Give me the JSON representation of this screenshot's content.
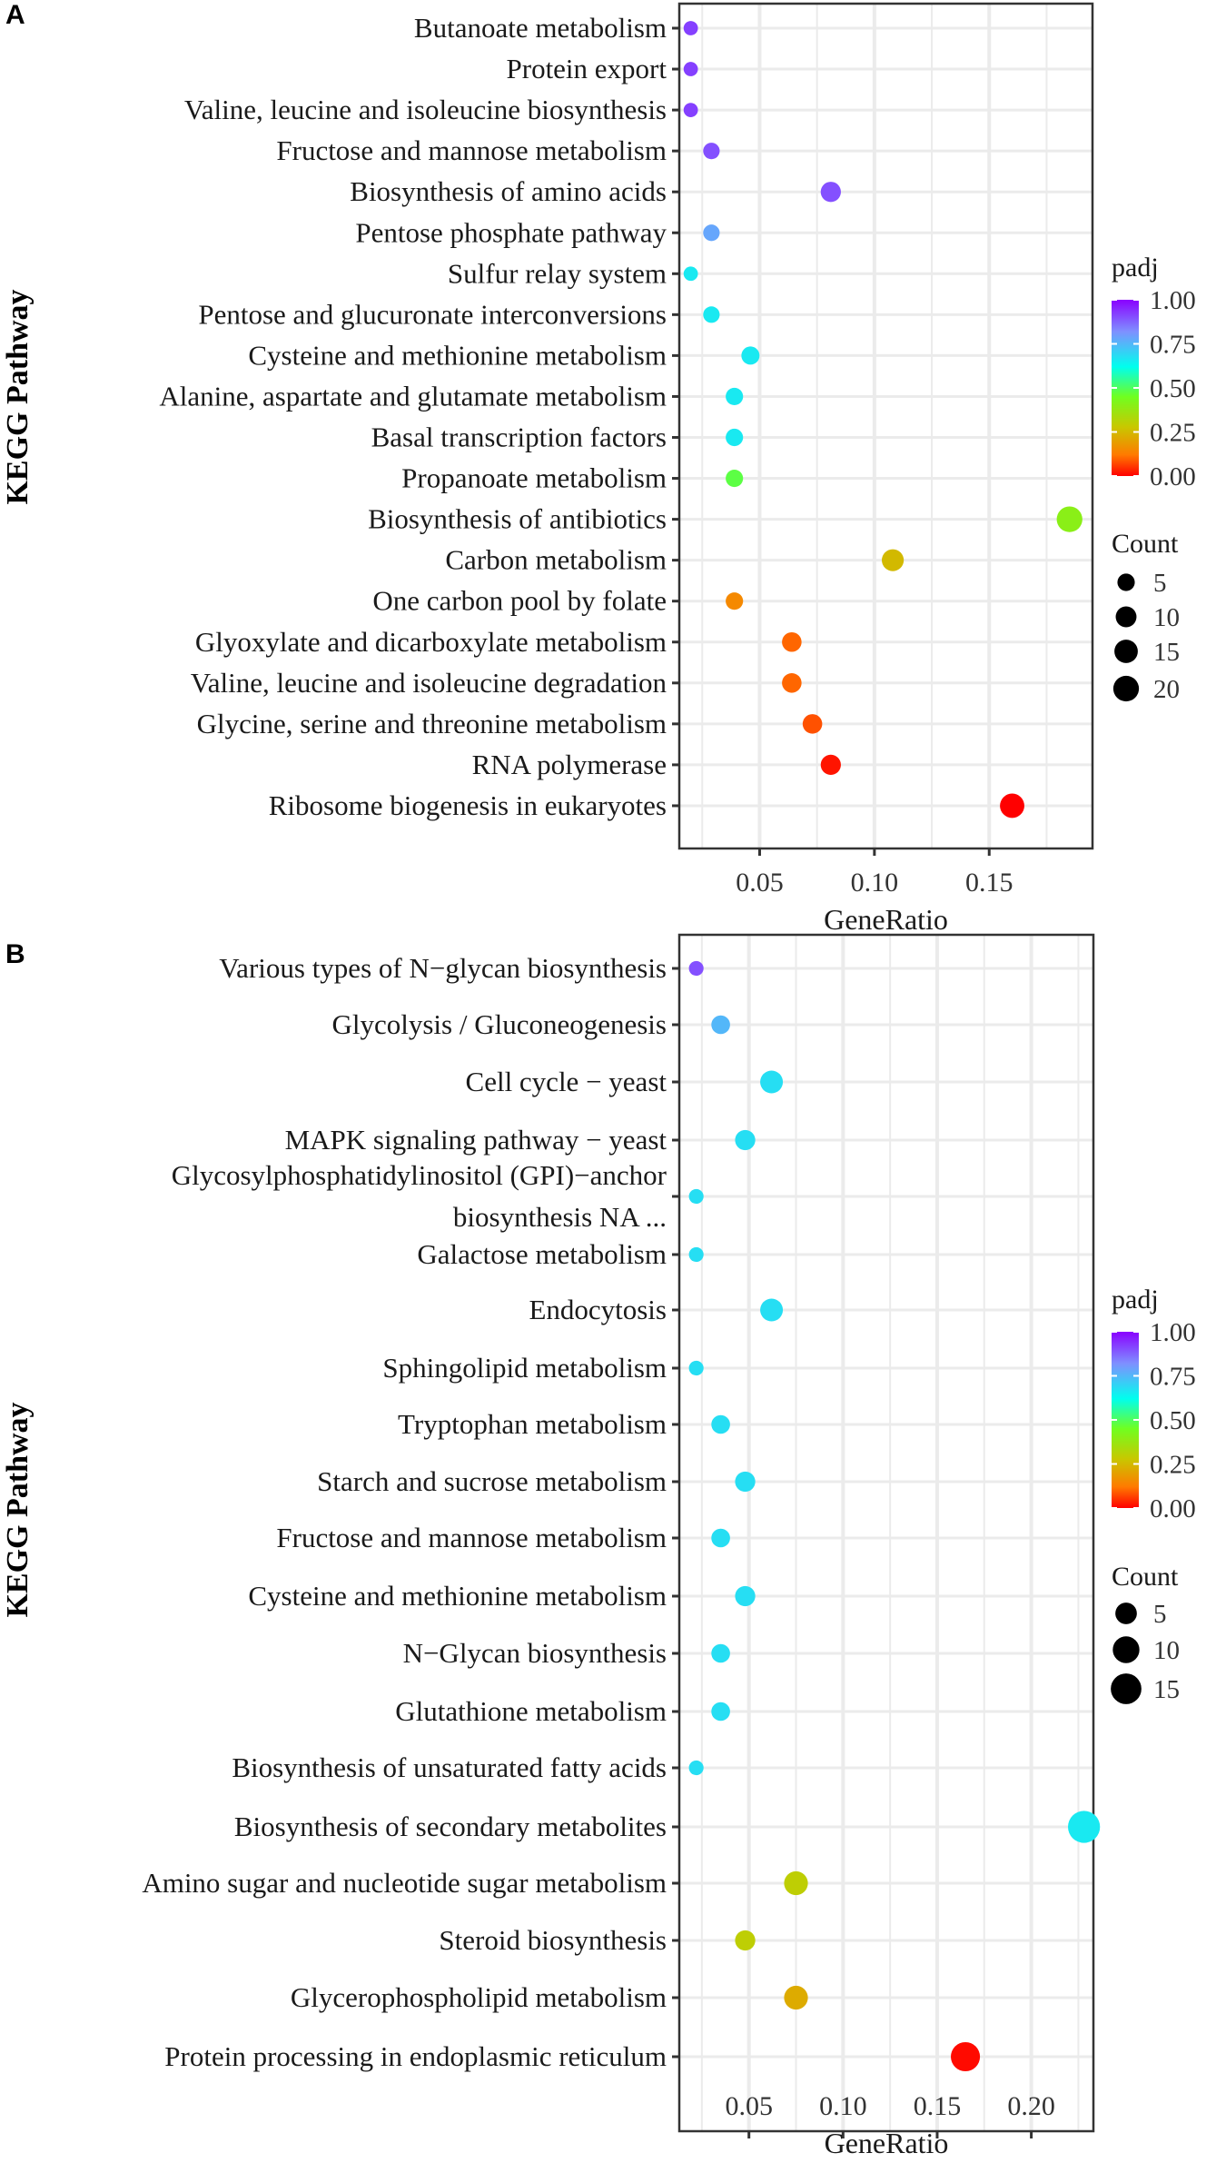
{
  "chart_data": [
    {
      "panel": "A",
      "type": "scatter",
      "subtype": "bubble",
      "xlabel": "GeneRatio",
      "ylabel": "KEGG Pathway",
      "xlim": [
        0.015,
        0.195
      ],
      "xticks": [
        0.05,
        0.1,
        0.15
      ],
      "xtick_labels": [
        "0.05",
        "0.10",
        "0.15"
      ],
      "grid": true,
      "color_legend": {
        "title": "padj",
        "range": [
          0,
          1
        ],
        "ticks": [
          "1.00",
          "0.75",
          "0.50",
          "0.25",
          "0.00"
        ],
        "tick_values": [
          1.0,
          0.75,
          0.5,
          0.25,
          0.0
        ]
      },
      "size_legend": {
        "title": "Count",
        "values": [
          5,
          10,
          15,
          20
        ],
        "labels": [
          "5",
          "10",
          "15",
          "20"
        ],
        "max": 24
      },
      "points": [
        {
          "pathway": "Butanoate metabolism",
          "gene_ratio": 0.02,
          "padj": 0.92,
          "count": 2
        },
        {
          "pathway": "Protein export",
          "gene_ratio": 0.02,
          "padj": 0.92,
          "count": 2
        },
        {
          "pathway": "Valine, leucine and isoleucine biosynthesis",
          "gene_ratio": 0.02,
          "padj": 0.92,
          "count": 2
        },
        {
          "pathway": "Fructose and mannose metabolism",
          "gene_ratio": 0.029,
          "padj": 0.9,
          "count": 4
        },
        {
          "pathway": "Biosynthesis of amino acids",
          "gene_ratio": 0.081,
          "padj": 0.9,
          "count": 9
        },
        {
          "pathway": "Pentose phosphate pathway",
          "gene_ratio": 0.029,
          "padj": 0.78,
          "count": 4
        },
        {
          "pathway": "Sulfur relay system",
          "gene_ratio": 0.02,
          "padj": 0.66,
          "count": 2
        },
        {
          "pathway": "Pentose and glucuronate interconversions",
          "gene_ratio": 0.029,
          "padj": 0.66,
          "count": 4
        },
        {
          "pathway": "Cysteine and methionine metabolism",
          "gene_ratio": 0.046,
          "padj": 0.66,
          "count": 6
        },
        {
          "pathway": "Alanine, aspartate and glutamate metabolism",
          "gene_ratio": 0.039,
          "padj": 0.66,
          "count": 5
        },
        {
          "pathway": "Basal transcription factors",
          "gene_ratio": 0.039,
          "padj": 0.66,
          "count": 5
        },
        {
          "pathway": "Propanoate metabolism",
          "gene_ratio": 0.039,
          "padj": 0.48,
          "count": 5
        },
        {
          "pathway": "Biosynthesis of antibiotics",
          "gene_ratio": 0.185,
          "padj": 0.4,
          "count": 20
        },
        {
          "pathway": "Carbon metabolism",
          "gene_ratio": 0.108,
          "padj": 0.25,
          "count": 12
        },
        {
          "pathway": "One carbon pool by folate",
          "gene_ratio": 0.039,
          "padj": 0.15,
          "count": 5
        },
        {
          "pathway": "Glyoxylate and dicarboxylate metabolism",
          "gene_ratio": 0.064,
          "padj": 0.1,
          "count": 8
        },
        {
          "pathway": "Valine, leucine and isoleucine degradation",
          "gene_ratio": 0.064,
          "padj": 0.1,
          "count": 8
        },
        {
          "pathway": "Glycine, serine and threonine metabolism",
          "gene_ratio": 0.073,
          "padj": 0.08,
          "count": 8
        },
        {
          "pathway": "RNA polymerase",
          "gene_ratio": 0.081,
          "padj": 0.02,
          "count": 9
        },
        {
          "pathway": "Ribosome biogenesis in eukaryotes",
          "gene_ratio": 0.16,
          "padj": 0.0,
          "count": 17
        }
      ]
    },
    {
      "panel": "B",
      "type": "scatter",
      "subtype": "bubble",
      "xlabel": "GeneRatio",
      "ylabel": "KEGG Pathway",
      "xlim": [
        0.013,
        0.233
      ],
      "xticks": [
        0.05,
        0.1,
        0.15,
        0.2
      ],
      "xtick_labels": [
        "0.05",
        "0.10",
        "0.15",
        "0.20"
      ],
      "grid": true,
      "color_legend": {
        "title": "padj",
        "range": [
          0,
          1
        ],
        "ticks": [
          "1.00",
          "0.75",
          "0.50",
          "0.25",
          "0.00"
        ],
        "tick_values": [
          1.0,
          0.75,
          0.5,
          0.25,
          0.0
        ]
      },
      "size_legend": {
        "title": "Count",
        "values": [
          5,
          10,
          15
        ],
        "labels": [
          "5",
          "10",
          "15"
        ],
        "max": 18
      },
      "points": [
        {
          "pathway": "Various types of N−glycan biosynthesis",
          "gene_ratio": 0.022,
          "padj": 0.9,
          "count": 1
        },
        {
          "pathway": "Glycolysis / Gluconeogenesis",
          "gene_ratio": 0.035,
          "padj": 0.75,
          "count": 3
        },
        {
          "pathway": "Cell cycle − yeast",
          "gene_ratio": 0.062,
          "padj": 0.68,
          "count": 6
        },
        {
          "pathway": "MAPK signaling pathway − yeast",
          "gene_ratio": 0.048,
          "padj": 0.68,
          "count": 4
        },
        {
          "pathway": "Glycosylphosphatidylinositol (GPI)−anchor biosynthesis NA ...",
          "pathway_lines": [
            "Glycosylphosphatidylinositol (GPI)−anchor",
            "biosynthesis NA ..."
          ],
          "gene_ratio": 0.022,
          "padj": 0.68,
          "count": 1
        },
        {
          "pathway": "Galactose metabolism",
          "gene_ratio": 0.022,
          "padj": 0.68,
          "count": 1
        },
        {
          "pathway": "Endocytosis",
          "gene_ratio": 0.062,
          "padj": 0.68,
          "count": 6
        },
        {
          "pathway": "Sphingolipid metabolism",
          "gene_ratio": 0.022,
          "padj": 0.68,
          "count": 1
        },
        {
          "pathway": "Tryptophan metabolism",
          "gene_ratio": 0.035,
          "padj": 0.68,
          "count": 3
        },
        {
          "pathway": "Starch and sucrose metabolism",
          "gene_ratio": 0.048,
          "padj": 0.68,
          "count": 4
        },
        {
          "pathway": "Fructose and mannose metabolism",
          "gene_ratio": 0.035,
          "padj": 0.68,
          "count": 3
        },
        {
          "pathway": "Cysteine and methionine metabolism",
          "gene_ratio": 0.048,
          "padj": 0.68,
          "count": 4
        },
        {
          "pathway": "N−Glycan biosynthesis",
          "gene_ratio": 0.035,
          "padj": 0.68,
          "count": 3
        },
        {
          "pathway": "Glutathione metabolism",
          "gene_ratio": 0.035,
          "padj": 0.68,
          "count": 3
        },
        {
          "pathway": "Biosynthesis of unsaturated fatty acids",
          "gene_ratio": 0.022,
          "padj": 0.68,
          "count": 1
        },
        {
          "pathway": "Biosynthesis of secondary metabolites",
          "gene_ratio": 0.228,
          "padj": 0.66,
          "count": 17
        },
        {
          "pathway": "Amino sugar and nucleotide sugar metabolism",
          "gene_ratio": 0.075,
          "padj": 0.3,
          "count": 7
        },
        {
          "pathway": "Steroid biosynthesis",
          "gene_ratio": 0.048,
          "padj": 0.3,
          "count": 4
        },
        {
          "pathway": "Glycerophospholipid metabolism",
          "gene_ratio": 0.075,
          "padj": 0.22,
          "count": 7
        },
        {
          "pathway": "Protein processing in endoplasmic reticulum",
          "gene_ratio": 0.165,
          "padj": 0.01,
          "count": 13
        }
      ]
    }
  ],
  "colors": {
    "grid": "#ebebeb",
    "panel_border": "#333333",
    "gradient": [
      "#ff0000",
      "#ff8000",
      "#c8c800",
      "#80ff00",
      "#00ffff",
      "#8080ff",
      "#8000ff"
    ]
  }
}
